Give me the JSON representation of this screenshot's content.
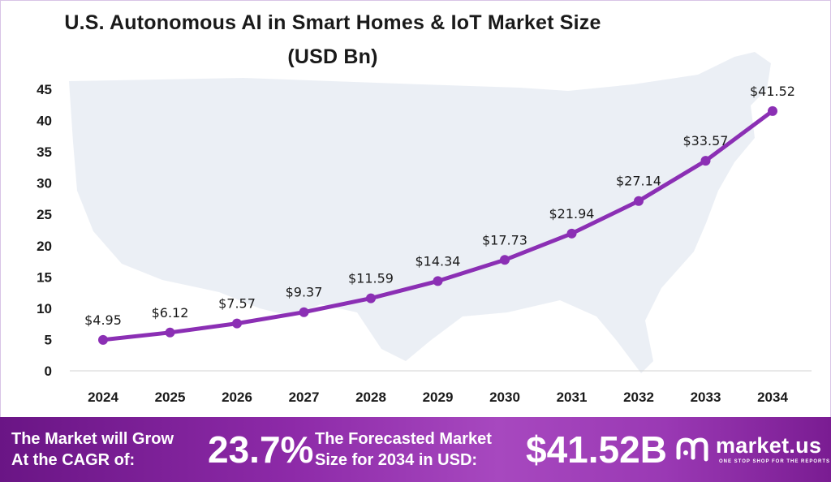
{
  "title_line1": "U.S. Autonomous  AI in Smart Homes & IoT Market Size",
  "title_line2": "(USD Bn)",
  "chart_data": {
    "type": "line",
    "title": "U.S. Autonomous AI in Smart Homes & IoT Market Size (USD Bn)",
    "x": [
      "2024",
      "2025",
      "2026",
      "2027",
      "2028",
      "2029",
      "2030",
      "2031",
      "2032",
      "2033",
      "2034"
    ],
    "values": [
      4.95,
      6.12,
      7.57,
      9.37,
      11.59,
      14.34,
      17.73,
      21.94,
      27.14,
      33.57,
      41.52
    ],
    "data_labels": [
      "$4.95",
      "$6.12",
      "$7.57",
      "$9.37",
      "$11.59",
      "$14.34",
      "$17.73",
      "$21.94",
      "$27.14",
      "$33.57",
      "$41.52"
    ],
    "yticks": [
      "0",
      "5",
      "10",
      "15",
      "20",
      "25",
      "30",
      "35",
      "40",
      "45"
    ],
    "ylim": [
      0,
      45
    ],
    "grid": false,
    "line_color": "#8b2fb4",
    "background_map": "united-states-map"
  },
  "banner": {
    "grow_line1": "The Market will Grow",
    "grow_line2": "At the CAGR of:",
    "cagr": "23.7%",
    "fore_line1": "The Forecasted Market",
    "fore_line2": "Size for 2034 in USD:",
    "amount": "$41.52B",
    "logo_text": "market.us",
    "tagline": "ONE STOP SHOP FOR THE REPORTS",
    "logo_icon": "market-us-logo-icon"
  }
}
